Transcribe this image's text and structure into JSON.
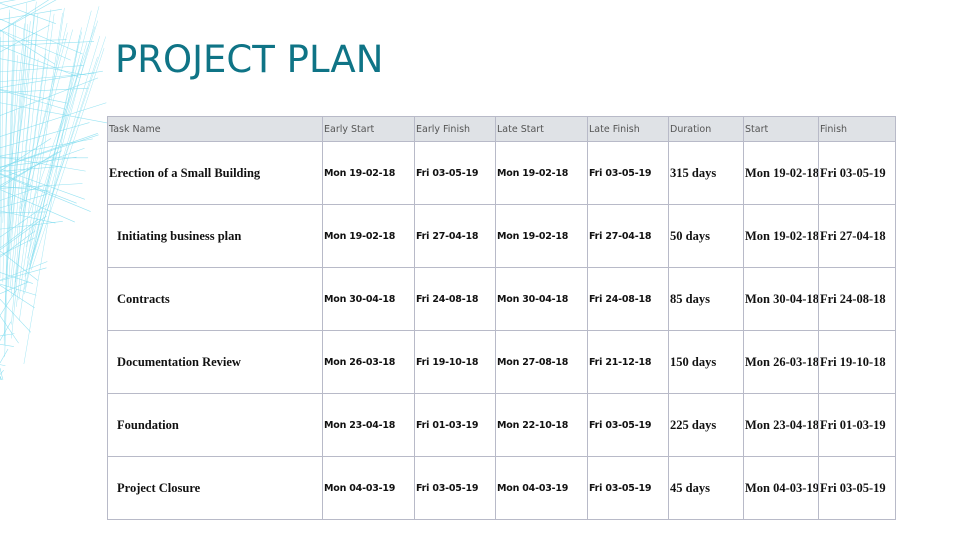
{
  "title": "PROJECT PLAN",
  "colors": {
    "title": "#0f7486",
    "header_bg": "#dfe2e6",
    "decoration": "#7fdcef"
  },
  "table": {
    "headers": [
      "Task Name",
      "Early Start",
      "Early Finish",
      "Late Start",
      "Late Finish",
      "Duration",
      "Start",
      "Finish"
    ],
    "rows": [
      [
        "Erection of a Small Building",
        "Mon 19-02-18",
        "Fri 03-05-19",
        "Mon 19-02-18",
        "Fri 03-05-19",
        "315 days",
        "Mon 19-02-18",
        "Fri 03-05-19"
      ],
      [
        "Initiating business plan",
        "Mon 19-02-18",
        "Fri 27-04-18",
        "Mon 19-02-18",
        "Fri 27-04-18",
        "50 days",
        "Mon 19-02-18",
        "Fri 27-04-18"
      ],
      [
        "Contracts",
        "Mon 30-04-18",
        "Fri 24-08-18",
        "Mon 30-04-18",
        "Fri 24-08-18",
        "85 days",
        "Mon 30-04-18",
        "Fri 24-08-18"
      ],
      [
        "Documentation Review",
        "Mon 26-03-18",
        "Fri 19-10-18",
        "Mon 27-08-18",
        "Fri 21-12-18",
        "150 days",
        "Mon 26-03-18",
        "Fri 19-10-18"
      ],
      [
        "Foundation",
        "Mon 23-04-18",
        "Fri 01-03-19",
        "Mon 22-10-18",
        "Fri 03-05-19",
        "225 days",
        "Mon 23-04-18",
        "Fri 01-03-19"
      ],
      [
        "Project Closure",
        "Mon 04-03-19",
        "Fri 03-05-19",
        "Mon 04-03-19",
        "Fri 03-05-19",
        "45 days",
        "Mon 04-03-19",
        "Fri 03-05-19"
      ]
    ]
  }
}
